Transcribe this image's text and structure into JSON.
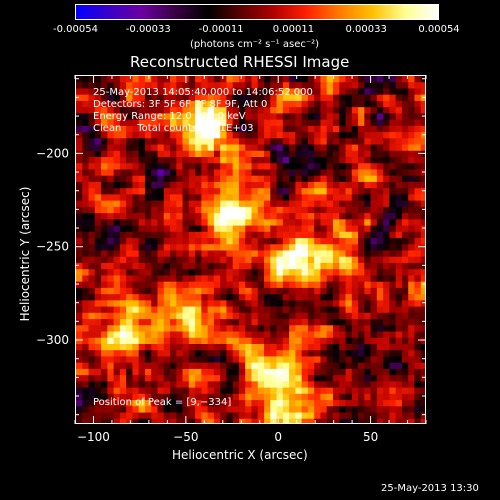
{
  "colorbar": {
    "tick_labels": [
      "-0.00054",
      "-0.00033",
      "-0.00011",
      "0.00011",
      "0.00033",
      "0.00054"
    ],
    "unit_label": "(photons cm⁻² s⁻¹ asec⁻²)",
    "colors": [
      "#0000ff",
      "#3a00c8",
      "#6a00a0",
      "#3a0044",
      "#000000",
      "#5a0000",
      "#b00000",
      "#ff2000",
      "#ff7a00",
      "#ffc000",
      "#ffff90",
      "#ffffff"
    ]
  },
  "chart_data": {
    "type": "heatmap",
    "title": "Reconstructed RHESSI Image",
    "xlabel": "Heliocentric X (arcsec)",
    "ylabel": "Heliocentric Y (arcsec)",
    "xlim": [
      -110,
      80
    ],
    "ylim": [
      -345,
      -158
    ],
    "x_ticks": [
      -100,
      -50,
      0,
      50
    ],
    "y_ticks": [
      -200,
      -250,
      -300
    ],
    "x_tick_labels": [
      "−100",
      "−50",
      "0",
      "50"
    ],
    "y_tick_labels": [
      "−200",
      "−250",
      "−300"
    ],
    "value_range": [
      -0.00054,
      0.00054
    ],
    "bright_sources": [
      {
        "x": -40,
        "y": -185,
        "value": 0.00054
      },
      {
        "x": -25,
        "y": -228,
        "value": 0.0005
      },
      {
        "x": 15,
        "y": -255,
        "value": 0.00052
      },
      {
        "x": -45,
        "y": -285,
        "value": 0.00046
      },
      {
        "x": -85,
        "y": -290,
        "value": 0.0004
      },
      {
        "x": -5,
        "y": -315,
        "value": 0.00036
      },
      {
        "x": 5,
        "y": -336,
        "value": 0.00054
      }
    ],
    "annotations": {
      "time_range": "25-May-2013 14:05:40.000 to 14:06:52.000",
      "detectors": "Detectors: 3F 5F 6F 7F 8F 9F, Att 0",
      "energy_range": "Energy Range: 12.0 - 25.0 keV",
      "method_counts": "Clean     Total counts: 1.51E+03",
      "peak_position": "Position of Peak = [9,−334]"
    }
  },
  "footer": {
    "timestamp": "25-May-2013 13:30"
  }
}
